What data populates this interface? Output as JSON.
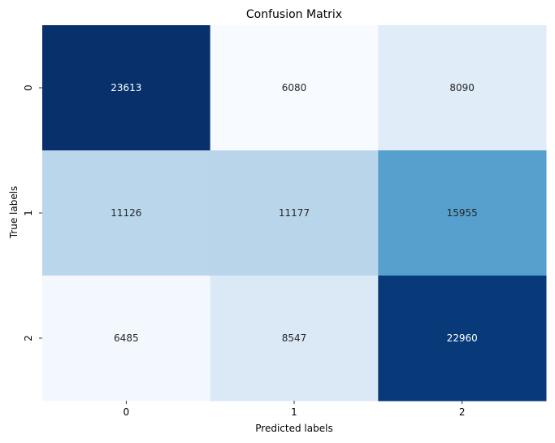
{
  "chart_data": {
    "type": "heatmap",
    "title": "Confusion Matrix",
    "xlabel": "Predicted labels",
    "ylabel": "True labels",
    "x_categories": [
      "0",
      "1",
      "2"
    ],
    "y_categories": [
      "0",
      "1",
      "2"
    ],
    "values": [
      [
        23613,
        6080,
        8090
      ],
      [
        11126,
        11177,
        15955
      ],
      [
        6485,
        8547,
        22960
      ]
    ],
    "colormap": "Blues",
    "colorbar": false,
    "annotations": true
  }
}
